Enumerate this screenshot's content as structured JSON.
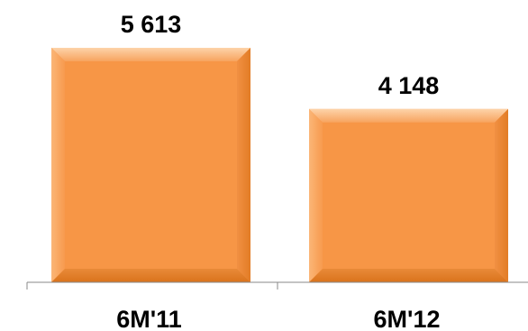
{
  "chart_data": {
    "type": "bar",
    "categories": [
      "6M'11",
      "6M'12"
    ],
    "values": [
      5613,
      4148
    ],
    "value_labels": [
      "5 613",
      "4 148"
    ],
    "ylim": [
      0,
      5613
    ],
    "grid": false,
    "legend": "none",
    "bar_color": "#F79646",
    "bar_highlight": "#FBC08C",
    "bar_shadow": "#E17A22",
    "axis_color": "#8A8A8A",
    "title": "",
    "xlabel": "",
    "ylabel": ""
  }
}
